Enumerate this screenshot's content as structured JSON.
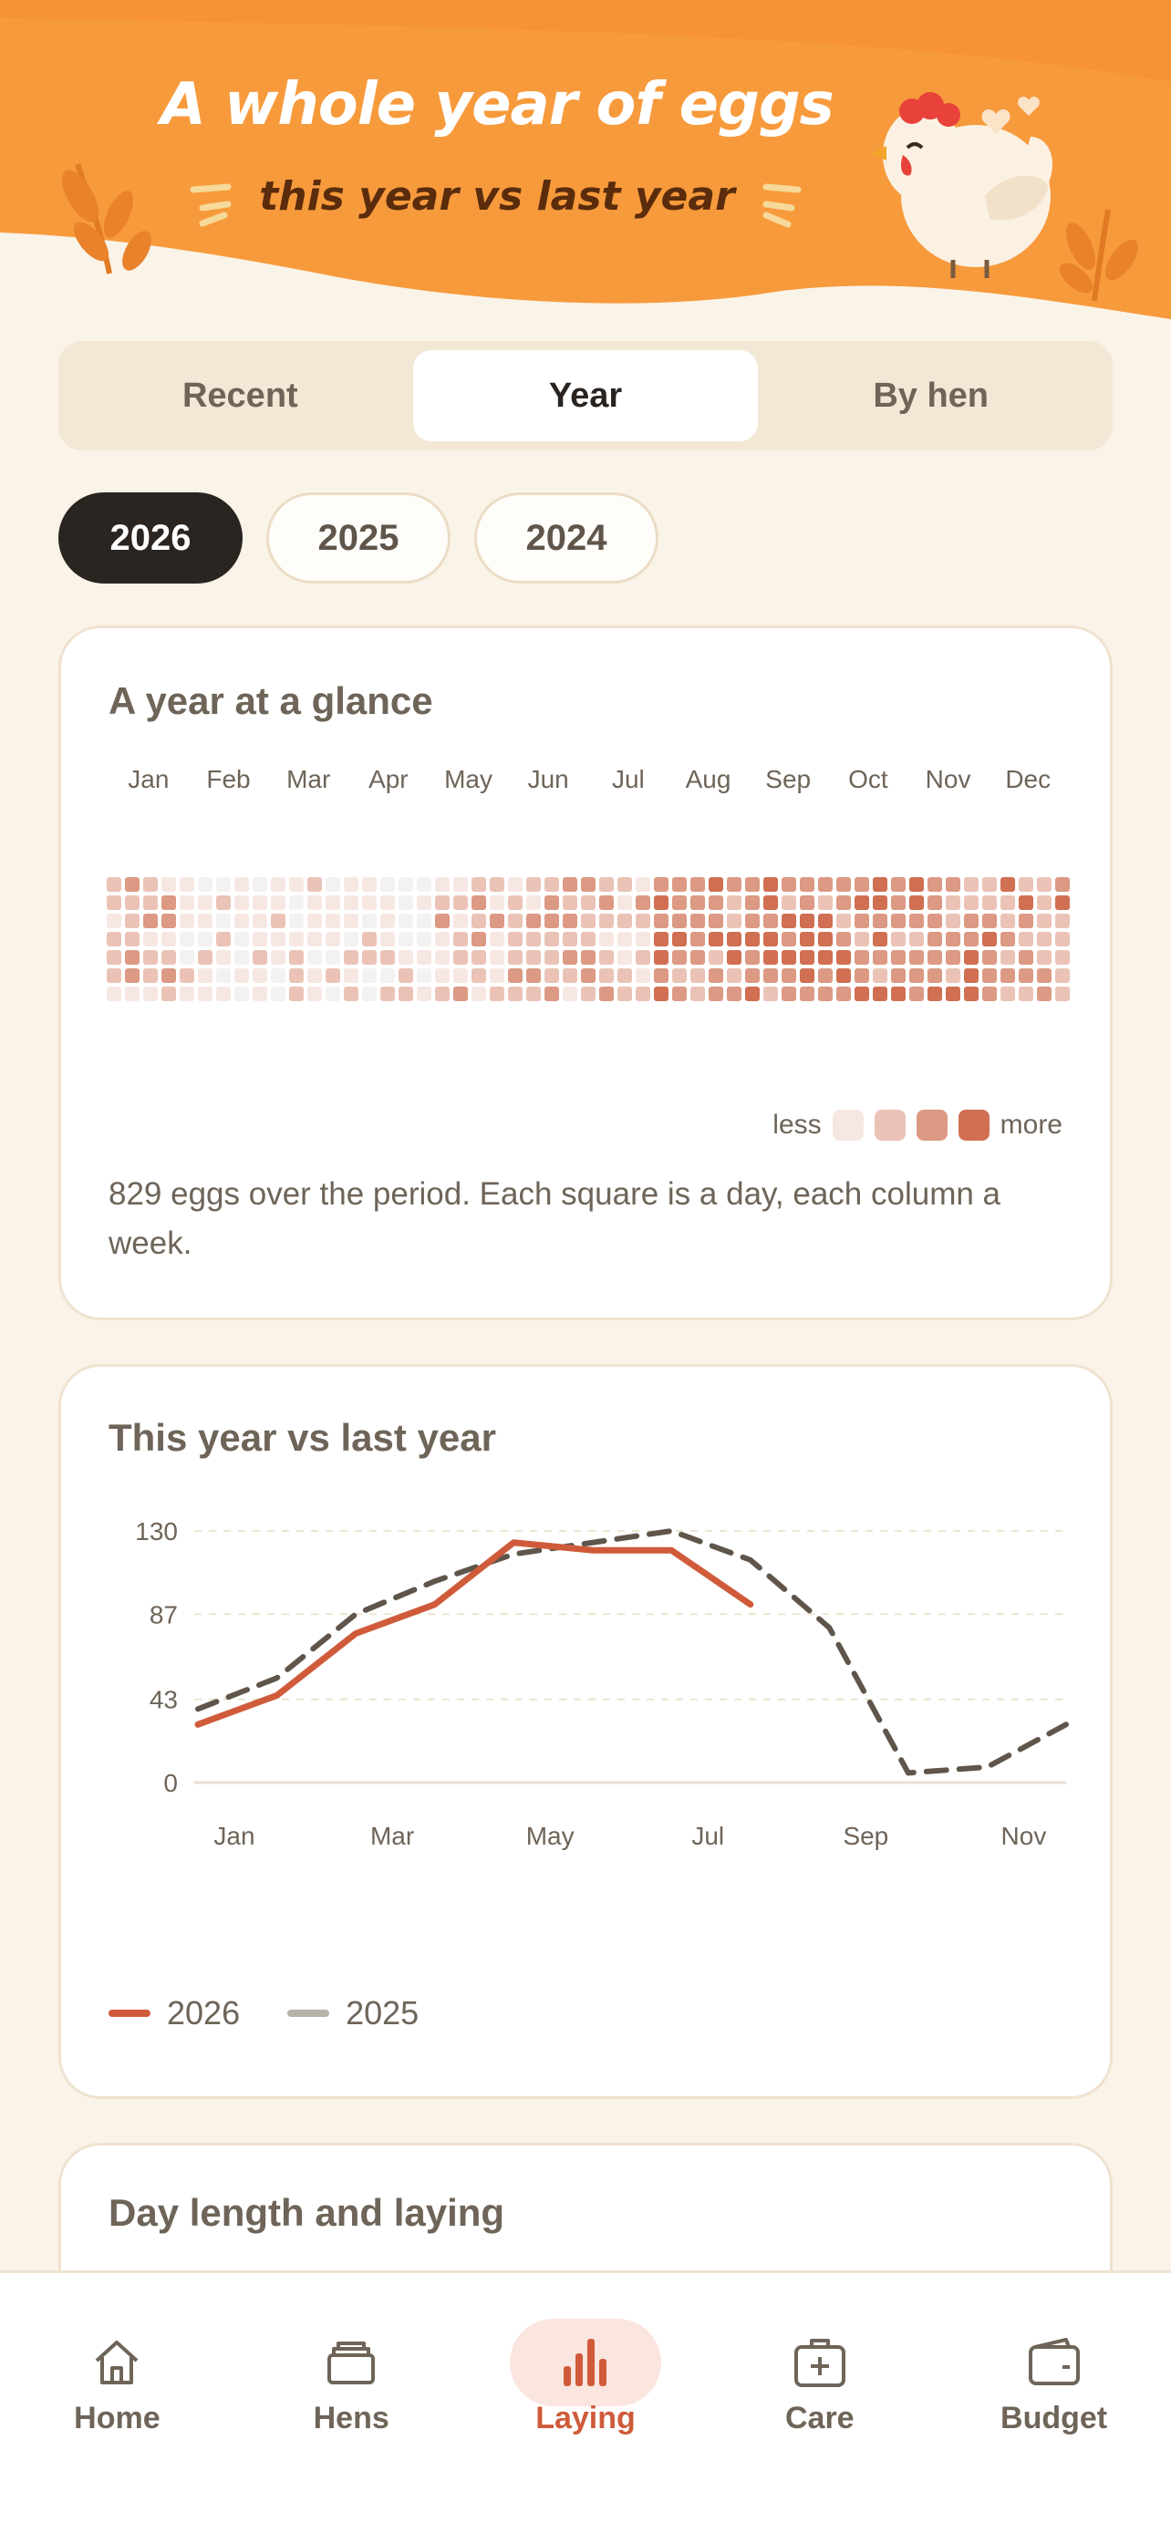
{
  "header": {
    "title": "A whole year of eggs",
    "subtitle": "this year vs last year"
  },
  "tabs": [
    {
      "label": "Recent",
      "active": false
    },
    {
      "label": "Year",
      "active": true
    },
    {
      "label": "By hen",
      "active": false
    }
  ],
  "years": [
    {
      "label": "2026",
      "active": true
    },
    {
      "label": "2025",
      "active": false
    },
    {
      "label": "2024",
      "active": false
    }
  ],
  "glance": {
    "title": "A year at a glance",
    "months": [
      "Jan",
      "Feb",
      "Mar",
      "Apr",
      "May",
      "Jun",
      "Jul",
      "Aug",
      "Sep",
      "Oct",
      "Nov",
      "Dec"
    ],
    "legend_less": "less",
    "legend_more": "more",
    "scale_colors": [
      "#f7e7e3",
      "#ebc3b6",
      "#dc9983",
      "#d06f52"
    ],
    "description": "829 eggs over the period. Each square is a day, each column a week."
  },
  "compare": {
    "title": "This year vs last year"
  },
  "chart_data": {
    "type": "line",
    "title": "This year vs last year",
    "categories": [
      "Jan",
      "Feb",
      "Mar",
      "Apr",
      "May",
      "Jun",
      "Jul",
      "Aug",
      "Sep",
      "Oct",
      "Nov",
      "Dec"
    ],
    "x_tick_labels": [
      "Jan",
      "Mar",
      "May",
      "Jul",
      "Sep",
      "Nov"
    ],
    "y_ticks": [
      0,
      43,
      87,
      130
    ],
    "ylim": [
      0,
      130
    ],
    "grid": true,
    "legend_position": "bottom-left",
    "series": [
      {
        "name": "2026",
        "color": "#cf5b3a",
        "style": "solid",
        "values": [
          30,
          45,
          77,
          92,
          124,
          120,
          120,
          92,
          null,
          null,
          null,
          null
        ]
      },
      {
        "name": "2025",
        "color": "#5f554b",
        "style": "dashed",
        "values": [
          38,
          54,
          87,
          104,
          118,
          124,
          130,
          115,
          80,
          5,
          8,
          30
        ]
      }
    ]
  },
  "daylength": {
    "title": "Day length and laying"
  },
  "nav": [
    {
      "label": "Home",
      "icon": "home-icon",
      "active": false
    },
    {
      "label": "Hens",
      "icon": "hens-icon",
      "active": false
    },
    {
      "label": "Laying",
      "icon": "bar-chart-icon",
      "active": true
    },
    {
      "label": "Care",
      "icon": "first-aid-icon",
      "active": false
    },
    {
      "label": "Budget",
      "icon": "wallet-icon",
      "active": false
    }
  ]
}
